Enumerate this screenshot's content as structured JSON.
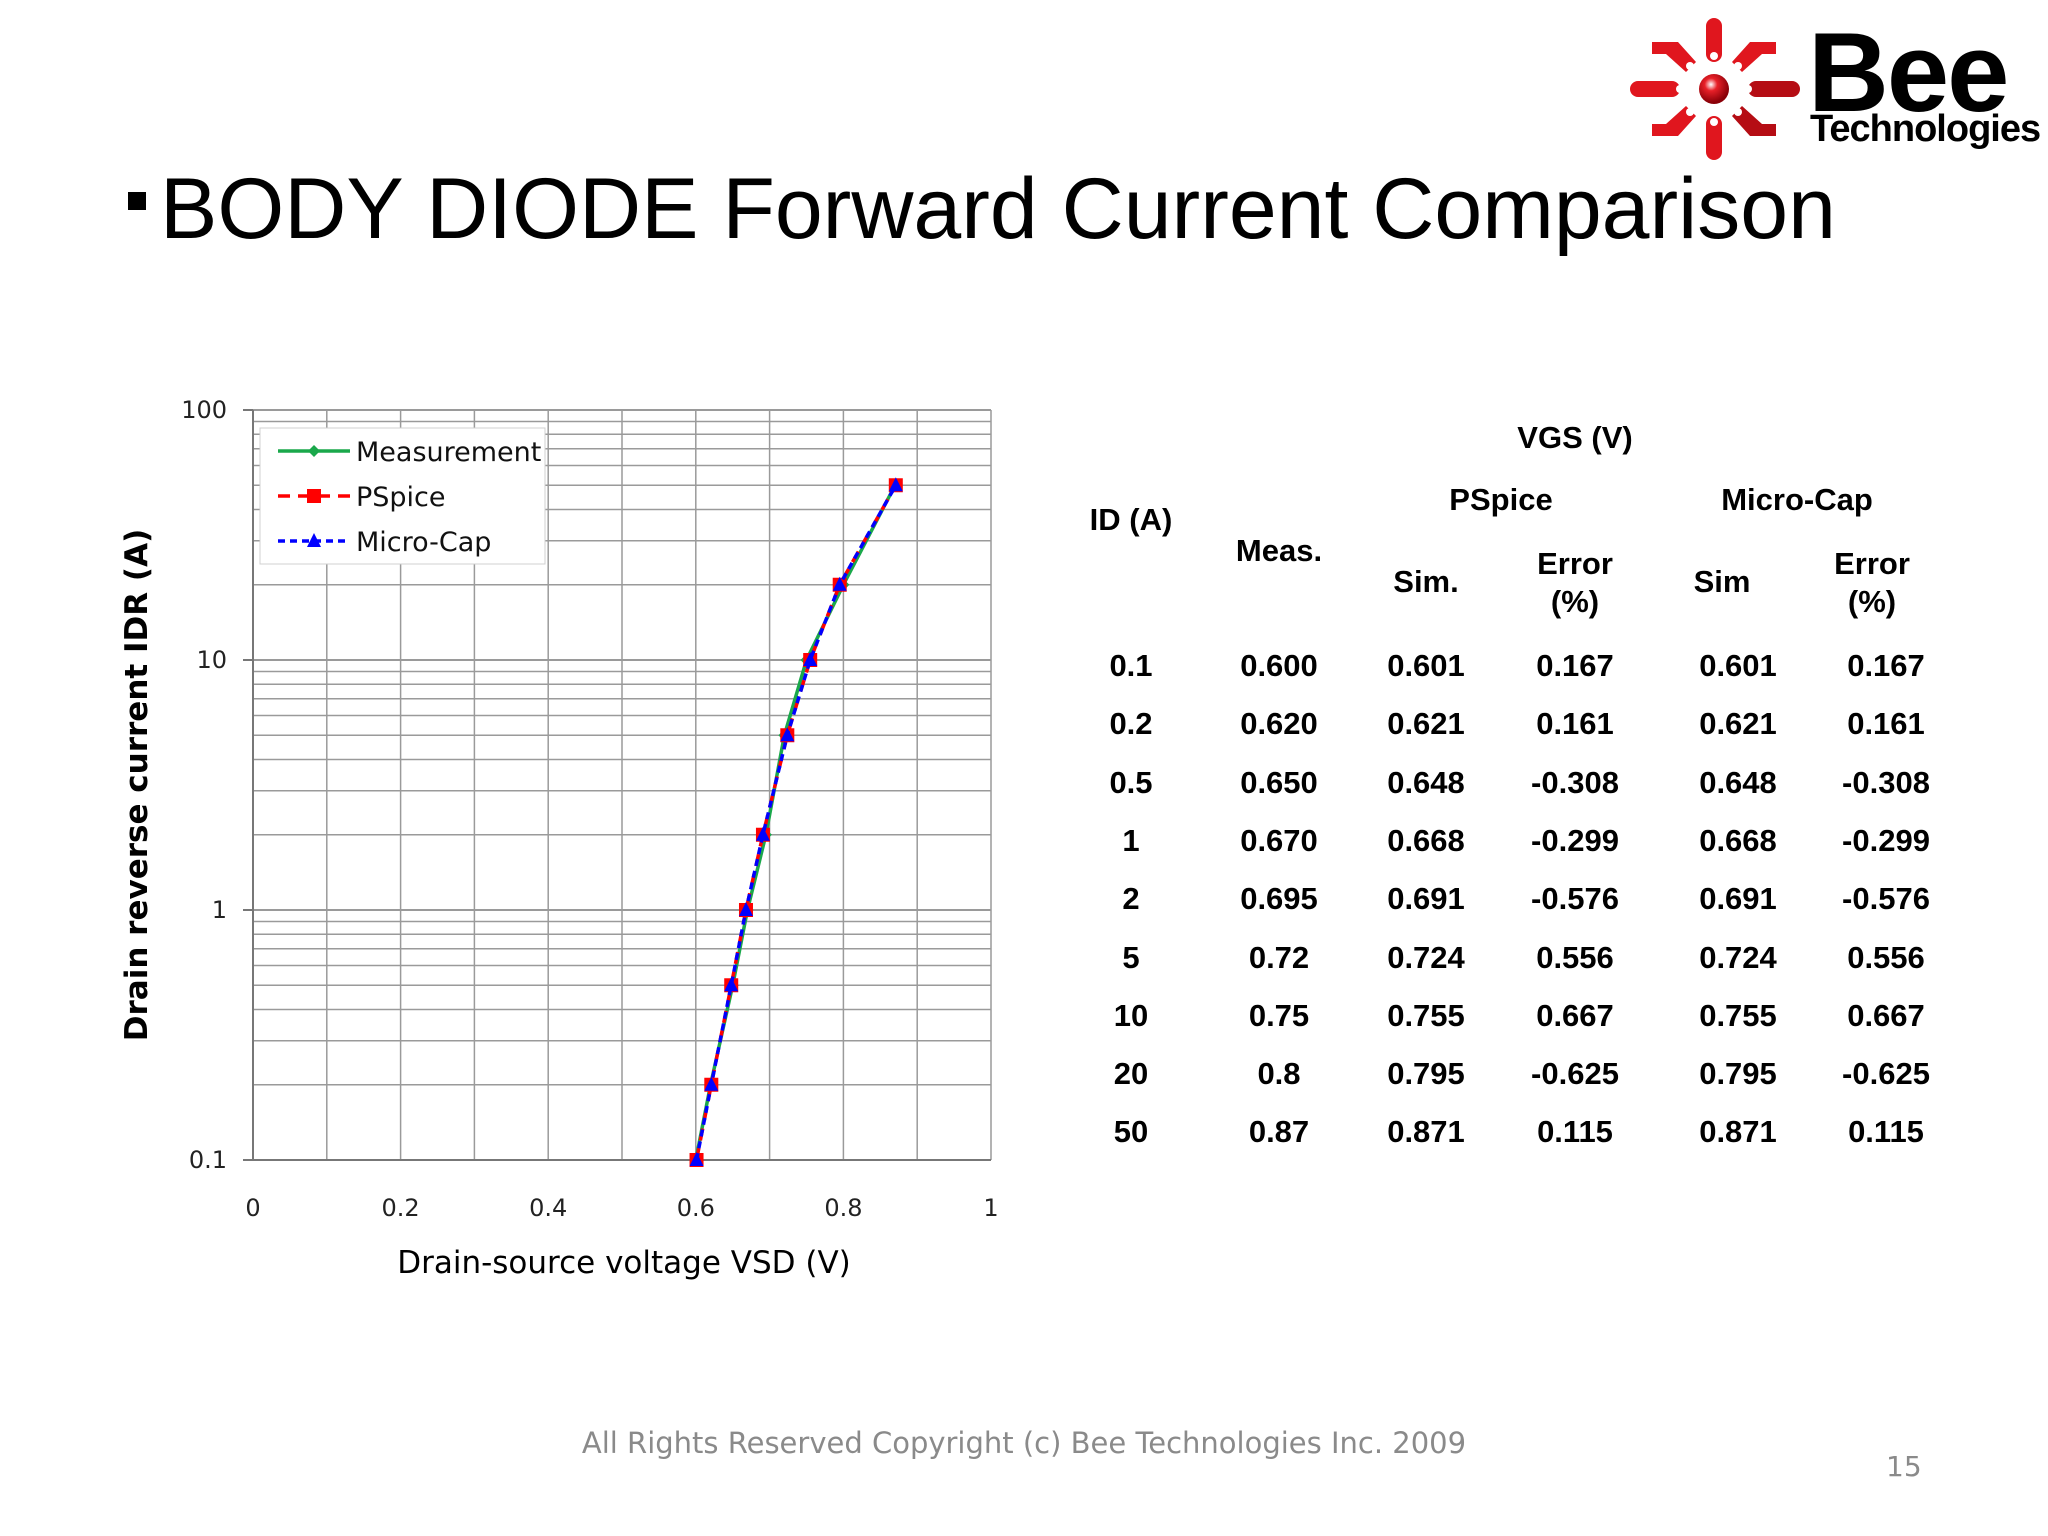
{
  "slide": {
    "title": "BODY DIODE Forward Current Comparison",
    "footer": "All Rights Reserved Copyright (c) Bee Technologies Inc. 2009",
    "page_number": "15"
  },
  "logo": {
    "name": "Bee",
    "subtitle": "Technologies",
    "color": "#e0161e"
  },
  "chart_data": {
    "type": "line",
    "title": "",
    "xlabel": "Drain-source voltage VSD (V)",
    "ylabel": "Drain reverse current IDR (A)",
    "xlim": [
      0,
      1
    ],
    "ylim": [
      0.1,
      100
    ],
    "yscale": "log",
    "grid": true,
    "legend_position": "top-left",
    "x_ticks": [
      "0",
      "0.2",
      "0.4",
      "0.6",
      "0.8",
      "1"
    ],
    "y_ticks": [
      "0.1",
      "1",
      "10",
      "100"
    ],
    "series": [
      {
        "name": "Measurement",
        "color": "#1aa84b",
        "style": "solid",
        "marker": "diamond",
        "x": [
          0.6,
          0.62,
          0.65,
          0.67,
          0.695,
          0.72,
          0.75,
          0.8,
          0.87
        ],
        "y": [
          0.1,
          0.2,
          0.5,
          1,
          2,
          5,
          10,
          20,
          50
        ]
      },
      {
        "name": "PSpice",
        "color": "#ff0000",
        "style": "dashed",
        "marker": "square",
        "x": [
          0.601,
          0.621,
          0.648,
          0.668,
          0.691,
          0.724,
          0.755,
          0.795,
          0.871
        ],
        "y": [
          0.1,
          0.2,
          0.5,
          1,
          2,
          5,
          10,
          20,
          50
        ]
      },
      {
        "name": "Micro-Cap",
        "color": "#0000ff",
        "style": "dotted",
        "marker": "triangle",
        "x": [
          0.601,
          0.621,
          0.648,
          0.668,
          0.691,
          0.724,
          0.755,
          0.795,
          0.871
        ],
        "y": [
          0.1,
          0.2,
          0.5,
          1,
          2,
          5,
          10,
          20,
          50
        ]
      }
    ]
  },
  "table": {
    "group_header": "VGS (V)",
    "headers": {
      "id": "ID (A)",
      "meas": "Meas.",
      "pspice": "PSpice",
      "microcap": "Micro-Cap",
      "pspice_sim": "Sim.",
      "pspice_err_1": "Error",
      "pspice_err_2": "(%)",
      "mc_sim": "Sim",
      "mc_err_1": "Error",
      "mc_err_2": "(%)"
    },
    "rows": [
      [
        "0.1",
        "0.600",
        "0.601",
        "0.167",
        "0.601",
        "0.167"
      ],
      [
        "0.2",
        "0.620",
        "0.621",
        "0.161",
        "0.621",
        "0.161"
      ],
      [
        "0.5",
        "0.650",
        "0.648",
        "-0.308",
        "0.648",
        "-0.308"
      ],
      [
        "1",
        "0.670",
        "0.668",
        "-0.299",
        "0.668",
        "-0.299"
      ],
      [
        "2",
        "0.695",
        "0.691",
        "-0.576",
        "0.691",
        "-0.576"
      ],
      [
        "5",
        "0.72",
        "0.724",
        "0.556",
        "0.724",
        "0.556"
      ],
      [
        "10",
        "0.75",
        "0.755",
        "0.667",
        "0.755",
        "0.667"
      ],
      [
        "20",
        "0.8",
        "0.795",
        "-0.625",
        "0.795",
        "-0.625"
      ],
      [
        "50",
        "0.87",
        "0.871",
        "0.115",
        "0.871",
        "0.115"
      ]
    ]
  }
}
